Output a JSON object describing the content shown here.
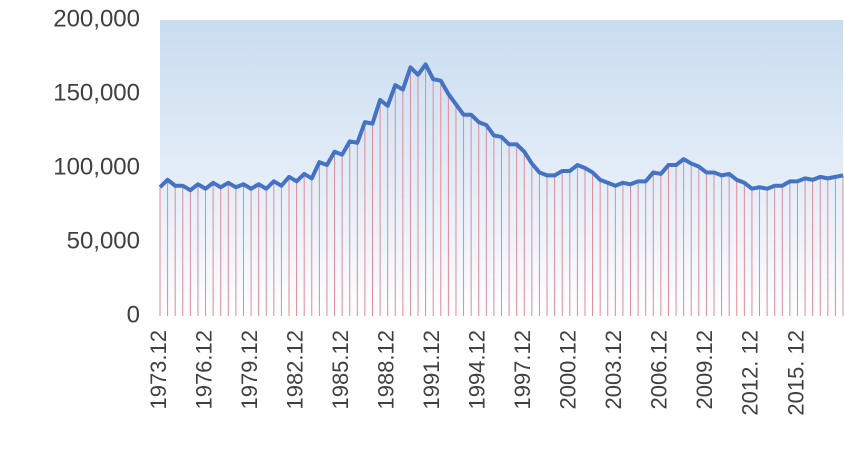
{
  "chart_data": {
    "type": "line",
    "categories": [
      "1973.12",
      null,
      null,
      null,
      null,
      null,
      "1976.12",
      null,
      null,
      null,
      null,
      null,
      "1979.12",
      null,
      null,
      null,
      null,
      null,
      "1982.12",
      null,
      null,
      null,
      null,
      null,
      "1985.12",
      null,
      null,
      null,
      null,
      null,
      "1988.12",
      null,
      null,
      null,
      null,
      null,
      "1991.12",
      null,
      null,
      null,
      null,
      null,
      "1994.12",
      null,
      null,
      null,
      null,
      null,
      "1997.12",
      null,
      null,
      null,
      null,
      null,
      "2000.12",
      null,
      null,
      null,
      null,
      null,
      "2003.12",
      null,
      null,
      null,
      null,
      null,
      "2006.12",
      null,
      null,
      null,
      null,
      null,
      "2009.12",
      null,
      null,
      null,
      null,
      null,
      "2012. 12",
      null,
      null,
      null,
      null,
      null,
      "2015. 12",
      null,
      null,
      null,
      null,
      null,
      null
    ],
    "series": [
      {
        "color": "#4472c4",
        "drop_color": "#e08a94",
        "values": [
          87000,
          92000,
          88000,
          88000,
          85000,
          89000,
          86000,
          90000,
          87000,
          90000,
          87000,
          89000,
          86000,
          89000,
          86000,
          91000,
          88000,
          94000,
          91000,
          96000,
          93000,
          104000,
          102000,
          111000,
          109000,
          118000,
          117000,
          131000,
          130000,
          146000,
          142000,
          156000,
          153000,
          168000,
          163000,
          170000,
          160000,
          159000,
          150000,
          143000,
          136000,
          136000,
          131000,
          129000,
          122000,
          121000,
          116000,
          116000,
          111000,
          103000,
          97000,
          95000,
          95000,
          98000,
          98000,
          102000,
          100000,
          97000,
          92000,
          90000,
          88000,
          90000,
          89000,
          91000,
          91000,
          97000,
          96000,
          102000,
          102000,
          106000,
          103000,
          101000,
          97000,
          97000,
          95000,
          96000,
          92000,
          90000,
          86000,
          87000,
          86000,
          88000,
          88000,
          91000,
          91000,
          93000,
          92000,
          94000,
          93000,
          94000,
          95000
        ]
      }
    ],
    "ylim": [
      0,
      200000
    ],
    "yticks": [
      0,
      {
        "value": 50000,
        "label": "50,000"
      },
      {
        "value": 100000,
        "label": "100,000"
      },
      {
        "value": 150000,
        "label": "150,000"
      },
      {
        "value": 200000,
        "label": "200,000"
      }
    ]
  }
}
